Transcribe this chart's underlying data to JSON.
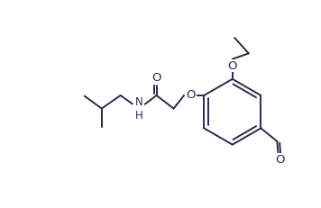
{
  "bg_color": "#ffffff",
  "line_color": "#2b2b4b",
  "line_width": 1.4,
  "font_size": 9.5,
  "figsize": [
    3.56,
    2.31
  ],
  "dpi": 100,
  "xlim": [
    0,
    10
  ],
  "ylim": [
    0,
    6.5
  ]
}
